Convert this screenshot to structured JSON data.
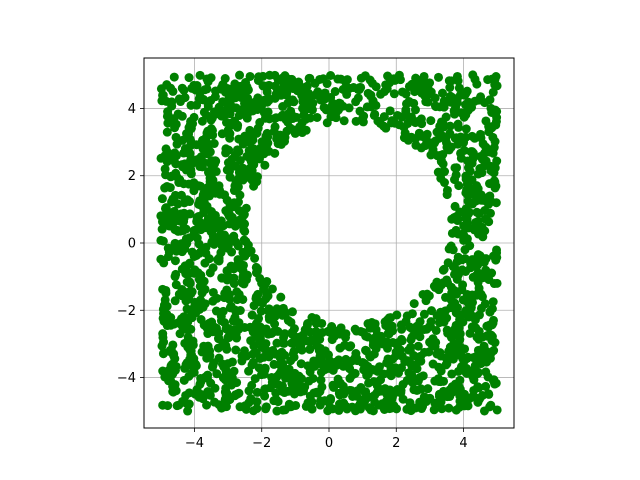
{
  "chart_data": {
    "type": "scatter",
    "title": "",
    "xlabel": "",
    "ylabel": "",
    "xlim": [
      -5.5,
      5.5
    ],
    "ylim": [
      -5.5,
      5.5
    ],
    "xticks": [
      -4,
      -2,
      0,
      2,
      4
    ],
    "yticks": [
      -4,
      -2,
      0,
      2,
      4
    ],
    "xtick_labels": [
      "−4",
      "−2",
      "0",
      "2",
      "4"
    ],
    "ytick_labels": [
      "−4",
      "−2",
      "0",
      "2",
      "4"
    ],
    "grid": true,
    "legend": "none",
    "series": [
      {
        "color": "#008000",
        "marker": "circle",
        "point_count": 2000,
        "distribution": "uniform in square [-5,5]x[-5,5] excluding disk",
        "exclusion_center": [
          0.6,
          0.6
        ],
        "exclusion_radius": 3.0
      }
    ]
  }
}
